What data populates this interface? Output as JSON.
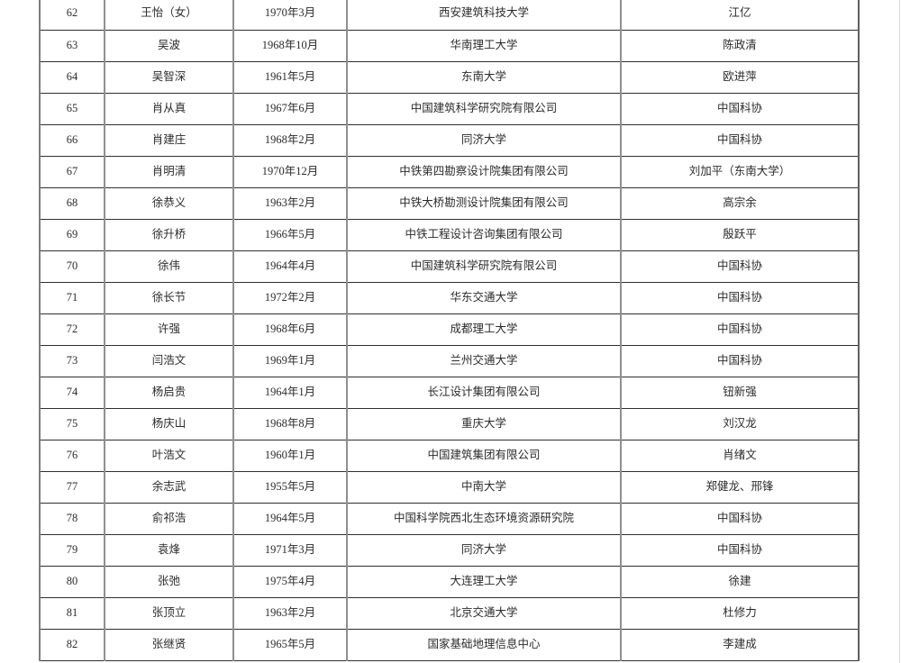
{
  "table": {
    "rows": [
      {
        "no": "62",
        "name": "王怡（女）",
        "birth": "1970年3月",
        "org": "西安建筑科技大学",
        "nominator": "江亿"
      },
      {
        "no": "63",
        "name": "吴波",
        "birth": "1968年10月",
        "org": "华南理工大学",
        "nominator": "陈政清"
      },
      {
        "no": "64",
        "name": "吴智深",
        "birth": "1961年5月",
        "org": "东南大学",
        "nominator": "欧进萍"
      },
      {
        "no": "65",
        "name": "肖从真",
        "birth": "1967年6月",
        "org": "中国建筑科学研究院有限公司",
        "nominator": "中国科协"
      },
      {
        "no": "66",
        "name": "肖建庄",
        "birth": "1968年2月",
        "org": "同济大学",
        "nominator": "中国科协"
      },
      {
        "no": "67",
        "name": "肖明清",
        "birth": "1970年12月",
        "org": "中铁第四勘察设计院集团有限公司",
        "nominator": "刘加平（东南大学）"
      },
      {
        "no": "68",
        "name": "徐恭义",
        "birth": "1963年2月",
        "org": "中铁大桥勘测设计院集团有限公司",
        "nominator": "高宗余"
      },
      {
        "no": "69",
        "name": "徐升桥",
        "birth": "1966年5月",
        "org": "中铁工程设计咨询集团有限公司",
        "nominator": "殷跃平"
      },
      {
        "no": "70",
        "name": "徐伟",
        "birth": "1964年4月",
        "org": "中国建筑科学研究院有限公司",
        "nominator": "中国科协"
      },
      {
        "no": "71",
        "name": "徐长节",
        "birth": "1972年2月",
        "org": "华东交通大学",
        "nominator": "中国科协"
      },
      {
        "no": "72",
        "name": "许强",
        "birth": "1968年6月",
        "org": "成都理工大学",
        "nominator": "中国科协"
      },
      {
        "no": "73",
        "name": "闫浩文",
        "birth": "1969年1月",
        "org": "兰州交通大学",
        "nominator": "中国科协"
      },
      {
        "no": "74",
        "name": "杨启贵",
        "birth": "1964年1月",
        "org": "长江设计集团有限公司",
        "nominator": "钮新强"
      },
      {
        "no": "75",
        "name": "杨庆山",
        "birth": "1968年8月",
        "org": "重庆大学",
        "nominator": "刘汉龙"
      },
      {
        "no": "76",
        "name": "叶浩文",
        "birth": "1960年1月",
        "org": "中国建筑集团有限公司",
        "nominator": "肖绪文"
      },
      {
        "no": "77",
        "name": "余志武",
        "birth": "1955年5月",
        "org": "中南大学",
        "nominator": "郑健龙、邢锋"
      },
      {
        "no": "78",
        "name": "俞祁浩",
        "birth": "1964年5月",
        "org": "中国科学院西北生态环境资源研究院",
        "nominator": "中国科协"
      },
      {
        "no": "79",
        "name": "袁烽",
        "birth": "1971年3月",
        "org": "同济大学",
        "nominator": "中国科协"
      },
      {
        "no": "80",
        "name": "张弛",
        "birth": "1975年4月",
        "org": "大连理工大学",
        "nominator": "徐建"
      },
      {
        "no": "81",
        "name": "张顶立",
        "birth": "1963年2月",
        "org": "北京交通大学",
        "nominator": "杜修力"
      },
      {
        "no": "82",
        "name": "张继贤",
        "birth": "1965年5月",
        "org": "国家基础地理信息中心",
        "nominator": "李建成"
      }
    ]
  }
}
